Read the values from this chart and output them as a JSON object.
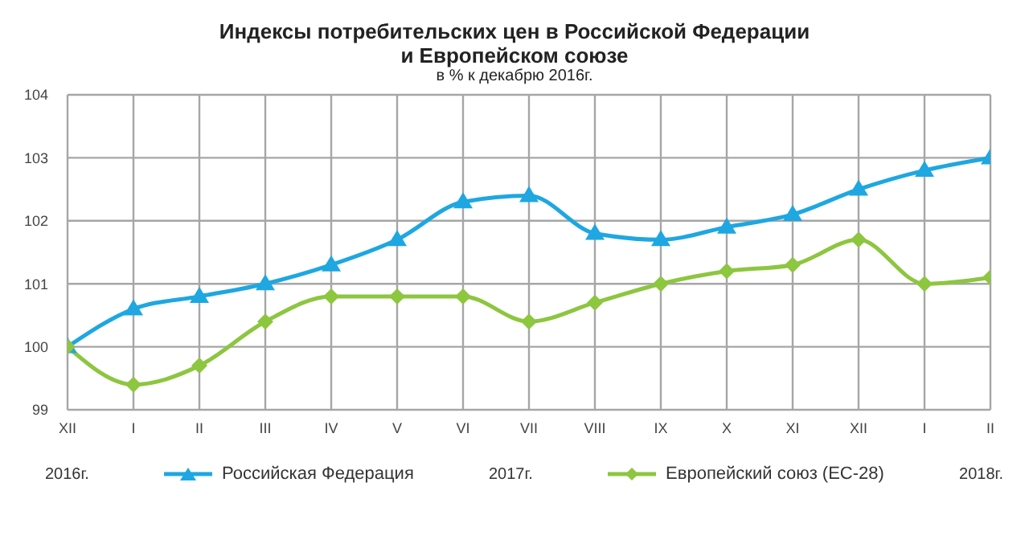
{
  "chart_data": {
    "type": "line",
    "title": "Индексы потребительских цен в Российской Федерации\nи Европейском союзе",
    "subtitle": "в % к декабрю 2016г.",
    "categories": [
      "XII",
      "I",
      "II",
      "III",
      "IV",
      "V",
      "VI",
      "VII",
      "VIII",
      "IX",
      "X",
      "XI",
      "XII",
      "I",
      "II"
    ],
    "series": [
      {
        "name": "Российская Федерация",
        "color": "#1ea7e1",
        "marker": "triangle",
        "values": [
          100,
          100.6,
          100.8,
          101.0,
          101.3,
          101.7,
          102.3,
          102.4,
          101.8,
          101.7,
          101.9,
          102.1,
          102.5,
          102.8,
          103.0
        ]
      },
      {
        "name": "Европейский союз (ЕС-28)",
        "color": "#8dc63f",
        "marker": "diamond",
        "values": [
          100,
          99.4,
          99.7,
          100.4,
          100.8,
          100.8,
          100.8,
          100.4,
          100.7,
          101.0,
          101.2,
          101.3,
          101.7,
          101.0,
          101.1
        ]
      }
    ],
    "ylim": [
      99,
      104
    ],
    "yticks": [
      99,
      100,
      101,
      102,
      103,
      104
    ],
    "grid": true,
    "legend": "bottom",
    "annotations": [
      "2016г.",
      "2017г.",
      "2018г."
    ]
  }
}
